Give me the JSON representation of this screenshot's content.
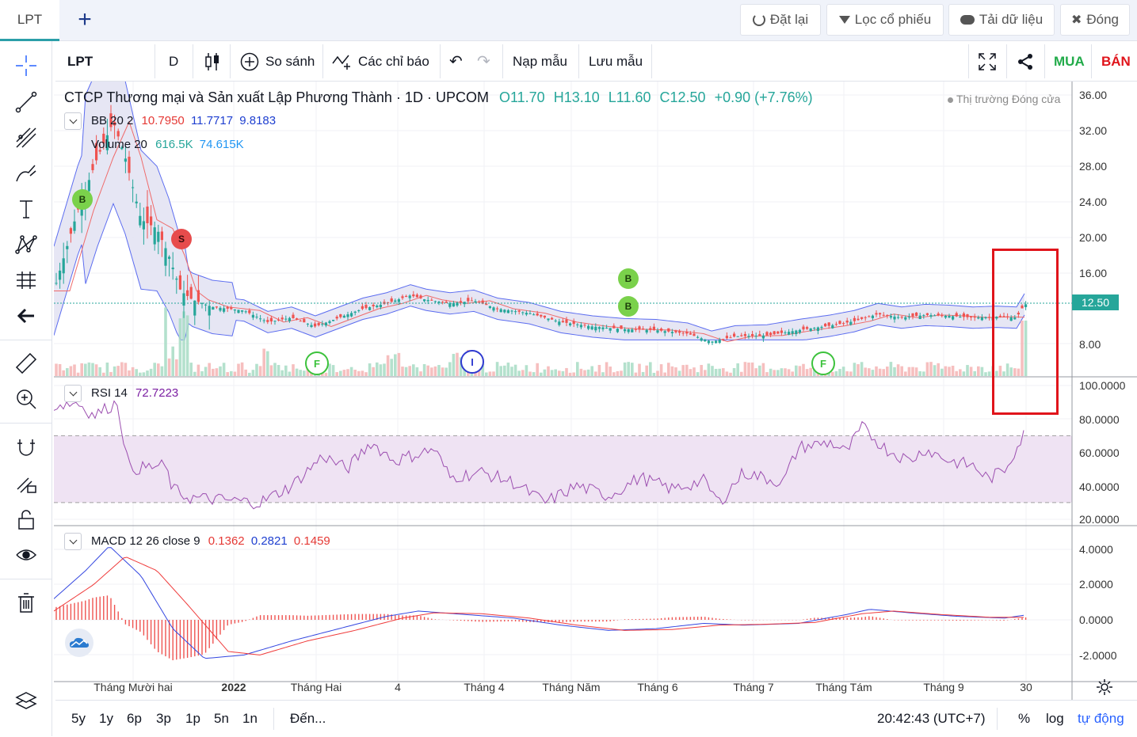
{
  "tabs": {
    "active": "LPT",
    "add_symbol": "+"
  },
  "top_actions": {
    "reset": "Đặt lại",
    "filter": "Lọc cổ phiếu",
    "download": "Tải dữ liệu",
    "close": "Đóng"
  },
  "toolbar": {
    "symbol": "LPT",
    "interval": "D",
    "compare": "So sánh",
    "indicators": "Các chỉ báo",
    "load_template": "Nạp mẫu",
    "save_template": "Lưu mẫu",
    "buy": "MUA",
    "sell": "BÁN"
  },
  "main_legend": {
    "title": "CTCP Thương mại và Sản xuất Lập Phương Thành · 1D · UPCOM",
    "open": "O11.70",
    "high": "H13.10",
    "low": "L11.60",
    "close": "C12.50",
    "change": "+0.90 (+7.76%)",
    "market_status": "Thị trường Đóng cửa"
  },
  "bb_legend": {
    "name": "BB 20 2",
    "v1": "10.7950",
    "v2": "11.7717",
    "v3": "9.8183"
  },
  "vol_legend": {
    "name": "Volume 20",
    "v1": "616.5K",
    "v2": "74.615K"
  },
  "rsi_legend": {
    "name": "RSI 14",
    "v1": "72.7223"
  },
  "macd_legend": {
    "name": "MACD 12 26 close 9",
    "v1": "0.1362",
    "v2": "0.2821",
    "v3": "0.1459"
  },
  "price_axis": [
    "36.00",
    "32.00",
    "28.00",
    "24.00",
    "20.00",
    "16.00",
    "12.50",
    "8.00"
  ],
  "last_price": "12.50",
  "rsi_axis": [
    "100.0000",
    "80.0000",
    "60.0000",
    "40.0000",
    "20.0000"
  ],
  "macd_axis": [
    "4.0000",
    "2.0000",
    "0.0000",
    "-2.0000"
  ],
  "time_axis": [
    "Tháng Mười hai",
    "2022",
    "Tháng Hai",
    "4",
    "Tháng 4",
    "Tháng Năm",
    "Tháng 6",
    "Tháng 7",
    "Tháng Tám",
    "Tháng 9",
    "30"
  ],
  "markers": {
    "buy": "B",
    "sell": "S",
    "f": "F",
    "i": "I"
  },
  "bottom": {
    "ranges": [
      "5y",
      "1y",
      "6p",
      "3p",
      "1p",
      "5n",
      "1n"
    ],
    "goto": "Đến...",
    "time": "20:42:43 (UTC+7)",
    "percent": "%",
    "log": "log",
    "auto": "tự động"
  },
  "colors": {
    "up": "#26a69a",
    "down": "#ef5350",
    "accent": "#2962ff",
    "bb_fill": "#e3e3f3",
    "highlight": "#e0141b"
  }
}
